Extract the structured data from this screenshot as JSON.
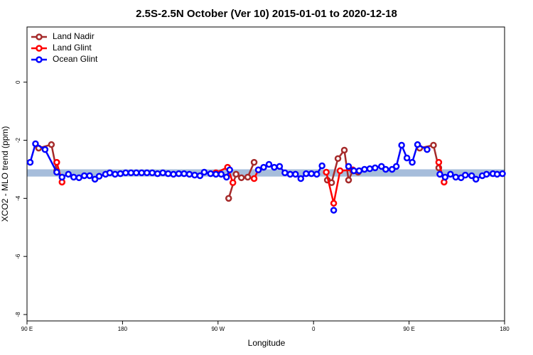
{
  "chart_data": {
    "type": "line",
    "title": "2.5S-2.5N October (Ver 10)   2015-01-01 to 2020-12-18",
    "x_label": "Longitude",
    "y_label": "XCO2 - MLO trend (ppm)",
    "xlim": [
      90,
      540
    ],
    "ylim": [
      -8.22,
      1.9
    ],
    "xticks": [
      {
        "value": 90,
        "label": "90 E"
      },
      180,
      {
        "value": 270,
        "label": "90 W"
      },
      {
        "value": 360,
        "label": "0"
      },
      {
        "value": 450,
        "label": "90 E"
      },
      {
        "value": 540,
        "label": "180"
      }
    ],
    "yticks": [
      0,
      -2,
      -4,
      -6,
      -8
    ],
    "band": {
      "ylim": [
        -3.25,
        -3.0
      ],
      "color": "#a6bddb"
    },
    "legend": "top-left",
    "series": [
      {
        "name": "Land Nadir",
        "color": "#a52a2a",
        "x": [
          101,
          113,
          118,
          200,
          280,
          287,
          292,
          298,
          304,
          310,
          373,
          377,
          383,
          389,
          393,
          397,
          402,
          410,
          460,
          473,
          478
        ],
        "values": [
          -2.27,
          -2.15,
          -3.05,
          null,
          -4.0,
          -3.17,
          -3.29,
          -3.27,
          -2.76,
          null,
          -3.37,
          -3.46,
          -2.63,
          -2.34,
          -3.37,
          -3.05,
          -3.1,
          null,
          -2.27,
          -2.17,
          -2.95
        ]
      },
      {
        "name": "Land Glint",
        "color": "#ff0000",
        "x": [
          118,
          123,
          200,
          268,
          279,
          284,
          290,
          304,
          308,
          340,
          372,
          379,
          385,
          397,
          420,
          478,
          483
        ],
        "values": [
          -2.76,
          -3.44,
          null,
          -3.12,
          -2.93,
          -3.46,
          null,
          -3.32,
          -3.02,
          null,
          -3.1,
          -4.17,
          -3.05,
          -3.02,
          null,
          -2.76,
          -3.44
        ]
      },
      {
        "name": "Ocean Glint",
        "color": "#0000ff",
        "x": [
          93,
          98,
          107,
          118,
          123,
          129,
          134,
          139,
          144,
          149,
          154,
          158,
          164,
          168,
          173,
          178,
          183,
          188,
          193,
          198,
          203,
          208,
          213,
          218,
          223,
          228,
          233,
          238,
          243,
          248,
          253,
          257,
          263,
          268,
          273,
          278,
          281,
          295,
          308,
          313,
          318,
          323,
          328,
          333,
          338,
          343,
          348,
          353,
          358,
          363,
          368,
          374,
          379,
          386,
          393,
          398,
          403,
          408,
          413,
          418,
          424,
          428,
          434,
          438,
          443,
          448,
          453,
          458,
          467,
          473,
          479,
          484,
          489,
          494,
          499,
          503,
          509,
          513,
          519,
          523,
          529,
          533,
          538
        ],
        "values": [
          -2.76,
          -2.12,
          -2.32,
          -3.1,
          -3.27,
          -3.17,
          -3.27,
          -3.29,
          -3.22,
          -3.22,
          -3.34,
          -3.24,
          -3.17,
          -3.12,
          -3.17,
          -3.15,
          -3.12,
          -3.12,
          -3.12,
          -3.12,
          -3.12,
          -3.12,
          -3.15,
          -3.12,
          -3.15,
          -3.17,
          -3.15,
          -3.15,
          -3.17,
          -3.2,
          -3.22,
          -3.1,
          -3.15,
          -3.17,
          -3.17,
          -3.27,
          -3.02,
          null,
          -3.02,
          -2.93,
          -2.83,
          -2.93,
          -2.9,
          -3.12,
          -3.17,
          -3.17,
          -3.32,
          -3.15,
          -3.15,
          -3.17,
          -2.88,
          null,
          -4.41,
          null,
          -2.9,
          -3.05,
          -3.05,
          -3.0,
          -2.98,
          -2.95,
          -2.9,
          -3.0,
          -3.0,
          -2.9,
          -2.17,
          -2.61,
          -2.76,
          -2.15,
          -2.32,
          null,
          -3.17,
          -3.27,
          -3.17,
          -3.27,
          -3.29,
          -3.2,
          -3.22,
          -3.34,
          -3.22,
          -3.17,
          -3.15,
          -3.17,
          -3.15
        ]
      }
    ]
  }
}
